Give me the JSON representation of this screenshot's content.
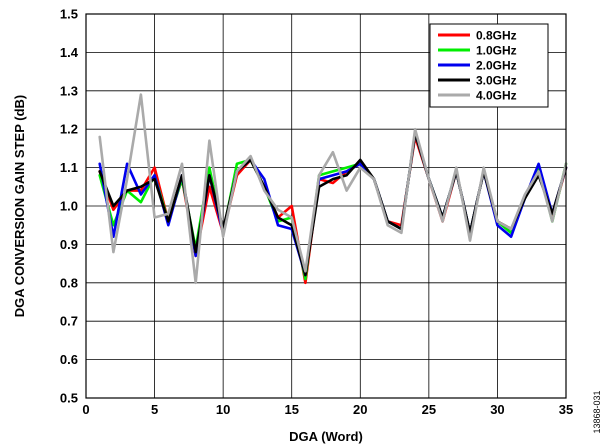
{
  "chart_data": {
    "type": "line",
    "xlabel": "DGA (Word)",
    "ylabel": "DGA CONVERSION GAIN STEP (dB)",
    "xlim": [
      0,
      35
    ],
    "ylim": [
      0.5,
      1.5
    ],
    "xticks": [
      0,
      5,
      10,
      15,
      20,
      25,
      30,
      35
    ],
    "yticks": [
      0.5,
      0.6,
      0.7,
      0.8,
      0.9,
      1.0,
      1.1,
      1.2,
      1.3,
      1.4,
      1.5
    ],
    "ytick_labels": [
      "0.5",
      "0.6",
      "0.7",
      "0.8",
      "0.9",
      "1.0",
      "1.1",
      "1.2",
      "1.3",
      "1.4",
      "1.5"
    ],
    "grid": true,
    "legend_position": "top-right",
    "x": [
      1,
      2,
      3,
      4,
      5,
      6,
      7,
      8,
      9,
      10,
      11,
      12,
      13,
      14,
      15,
      16,
      17,
      18,
      19,
      20,
      21,
      22,
      23,
      24,
      25,
      26,
      27,
      28,
      29,
      30,
      31,
      32,
      33,
      34,
      35
    ],
    "series": [
      {
        "name": "0.8GHz",
        "color": "#ff0000",
        "values": [
          1.09,
          0.99,
          1.04,
          1.04,
          1.1,
          0.96,
          1.07,
          0.87,
          1.05,
          0.93,
          1.08,
          1.12,
          1.05,
          0.97,
          1.0,
          0.8,
          1.07,
          1.06,
          1.09,
          1.11,
          1.07,
          0.96,
          0.95,
          1.18,
          1.07,
          0.96,
          1.09,
          0.93,
          1.09,
          0.96,
          0.94,
          1.02,
          1.09,
          0.97,
          1.1
        ]
      },
      {
        "name": "1.0GHz",
        "color": "#00ee00",
        "values": [
          1.08,
          0.95,
          1.04,
          1.01,
          1.08,
          0.96,
          1.07,
          0.89,
          1.1,
          0.93,
          1.11,
          1.12,
          1.05,
          0.96,
          0.97,
          0.81,
          1.08,
          1.09,
          1.1,
          1.11,
          1.07,
          0.96,
          0.94,
          1.19,
          1.07,
          0.97,
          1.09,
          0.93,
          1.09,
          0.96,
          0.93,
          1.02,
          1.1,
          0.96,
          1.11
        ]
      },
      {
        "name": "2.0GHz",
        "color": "#0000ee",
        "values": [
          1.11,
          0.92,
          1.11,
          1.03,
          1.08,
          0.95,
          1.08,
          0.87,
          1.08,
          0.93,
          1.09,
          1.12,
          1.07,
          0.95,
          0.94,
          0.82,
          1.07,
          1.08,
          1.09,
          1.11,
          1.07,
          0.96,
          0.94,
          1.19,
          1.07,
          0.97,
          1.09,
          0.93,
          1.09,
          0.95,
          0.92,
          1.02,
          1.11,
          0.98,
          1.1
        ]
      },
      {
        "name": "3.0GHz",
        "color": "#000000",
        "values": [
          1.09,
          1.0,
          1.04,
          1.05,
          1.07,
          0.96,
          1.08,
          0.88,
          1.08,
          0.94,
          1.09,
          1.12,
          1.05,
          0.97,
          0.95,
          0.82,
          1.05,
          1.07,
          1.08,
          1.12,
          1.07,
          0.96,
          0.94,
          1.19,
          1.07,
          0.97,
          1.09,
          0.93,
          1.09,
          0.96,
          0.94,
          1.02,
          1.08,
          0.98,
          1.1
        ]
      },
      {
        "name": "4.0GHz",
        "color": "#aaaaaa",
        "values": [
          1.18,
          0.88,
          1.07,
          1.29,
          0.97,
          0.98,
          1.11,
          0.8,
          1.17,
          0.92,
          1.09,
          1.13,
          1.04,
          0.99,
          0.97,
          0.83,
          1.08,
          1.14,
          1.04,
          1.1,
          1.07,
          0.95,
          0.93,
          1.2,
          1.07,
          0.96,
          1.1,
          0.91,
          1.1,
          0.96,
          0.94,
          1.03,
          1.09,
          0.96,
          1.11
        ]
      }
    ]
  },
  "figure_id": "13868-031"
}
